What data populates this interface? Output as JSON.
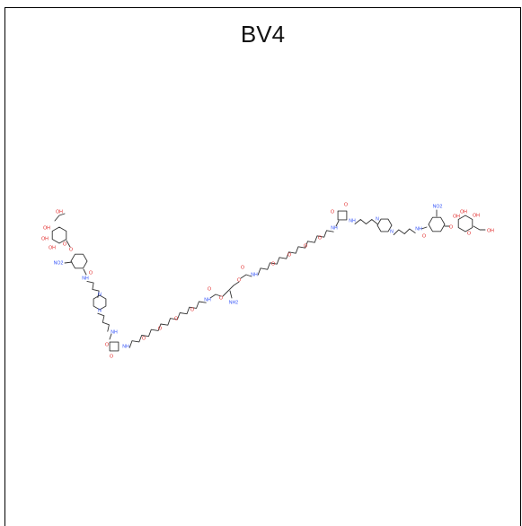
{
  "title": "BV4",
  "atom_labels": {
    "oxygen": "O",
    "hydroxyl": "OH",
    "nitrogen": "N",
    "amide": "NH",
    "amine": "NH2",
    "nitro": "NO2"
  },
  "colors": {
    "bond": "#333333",
    "oxygen": "#e02020",
    "nitrogen": "#3050f8",
    "text": "#111111",
    "border": "#000000"
  }
}
